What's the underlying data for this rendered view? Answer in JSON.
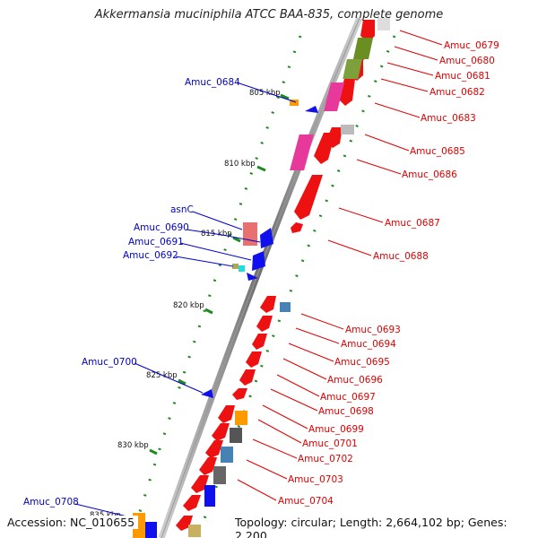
{
  "title": "Akkermansia muciniphila ATCC BAA-835, complete genome",
  "footer": {
    "accession": "Accession: NC_010655",
    "summary": "Topology: circular; Length: 2,664,102 bp; Genes: 2,200"
  },
  "colors": {
    "backbone": "#888888",
    "red_label": "#e00000",
    "blue_label": "#0000cc",
    "green_dots": "#1f8a1f",
    "cds_red": "#ee1111",
    "green_gene": "#6b8e23",
    "pink_gene": "#e6399b",
    "blue_gene": "#1010ee",
    "orange_gene": "#ff9900"
  },
  "scale_labels": [
    "805 kbp",
    "810 kbp",
    "815 kbp",
    "820 kbp",
    "825 kbp",
    "830 kbp"
  ],
  "right_labels": [
    {
      "text": "Amuc_0679"
    },
    {
      "text": "Amuc_0680"
    },
    {
      "text": "Amuc_0681"
    },
    {
      "text": "Amuc_0682"
    },
    {
      "text": "Amuc_0683"
    },
    {
      "text": "Amuc_0685"
    },
    {
      "text": "Amuc_0686"
    },
    {
      "text": "Amuc_0687"
    },
    {
      "text": "Amuc_0688"
    },
    {
      "text": "Amuc_0693"
    },
    {
      "text": "Amuc_0694"
    },
    {
      "text": "Amuc_0695"
    },
    {
      "text": "Amuc_0696"
    },
    {
      "text": "Amuc_0697"
    },
    {
      "text": "Amuc_0698"
    },
    {
      "text": "Amuc_0699"
    },
    {
      "text": "Amuc_0701"
    },
    {
      "text": "Amuc_0702"
    },
    {
      "text": "Amuc_0703"
    },
    {
      "text": "Amuc_0704"
    }
  ],
  "left_labels": [
    {
      "text": "Amuc_0684"
    },
    {
      "text": "asnC"
    },
    {
      "text": "Amuc_0690"
    },
    {
      "text": "Amuc_0691"
    },
    {
      "text": "Amuc_0692"
    },
    {
      "text": "Amuc_0700"
    },
    {
      "text": "Amuc_0708"
    }
  ]
}
